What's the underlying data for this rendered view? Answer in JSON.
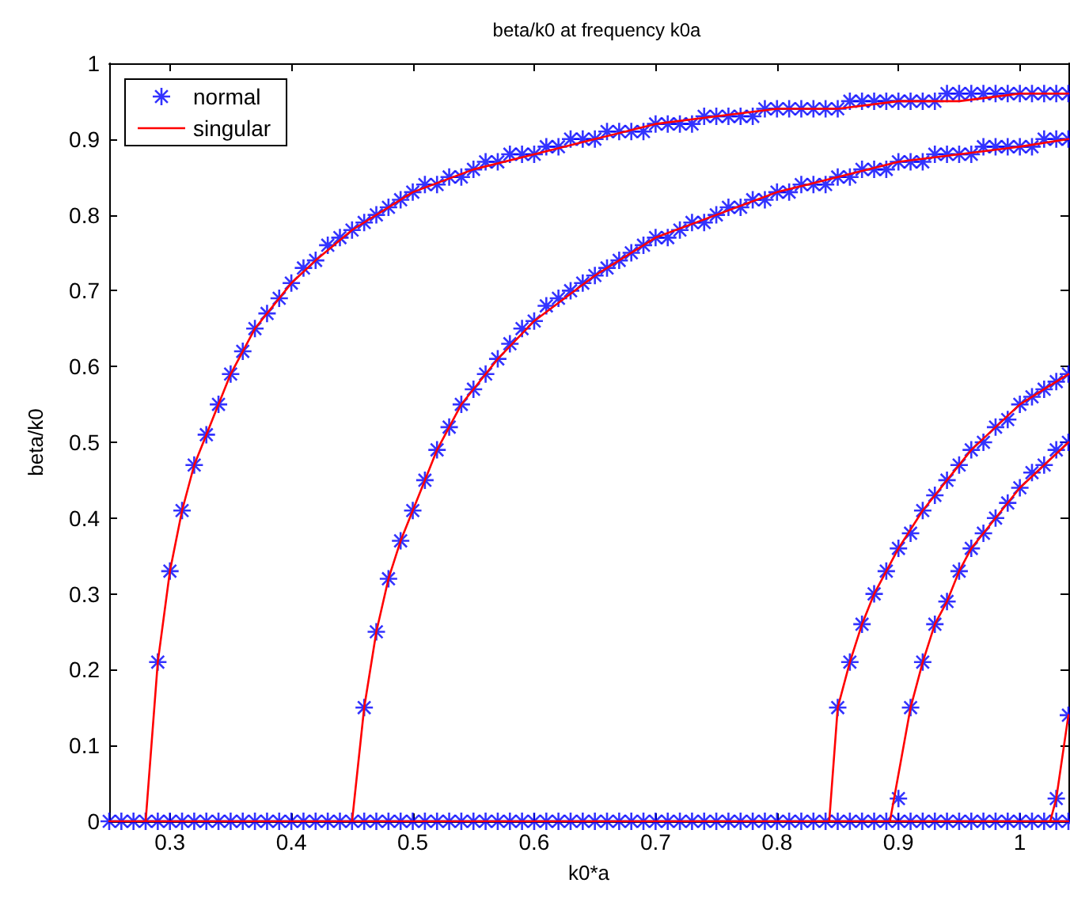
{
  "chart_data": {
    "type": "scatter",
    "title": "beta/k0 at frequency k0a",
    "xlabel": "k0*a",
    "ylabel": "beta/k0",
    "xlim": [
      0.25,
      1.04
    ],
    "xticks": [
      0.3,
      0.4,
      0.5,
      0.6,
      0.7,
      0.8,
      0.9,
      1
    ],
    "ylim": [
      0,
      1
    ],
    "yticks": [
      0,
      0.1,
      0.2,
      0.3,
      0.4,
      0.5,
      0.6,
      0.7,
      0.8,
      0.9,
      1
    ],
    "grid": false,
    "legend": "top left",
    "series": [
      {
        "name": "normal",
        "marker": "cross",
        "color": "#0000ff",
        "x": [
          0.25,
          0.26,
          0.27,
          0.28,
          0.29,
          0.3,
          0.31,
          0.32,
          0.33,
          0.34,
          0.35,
          0.36,
          0.37,
          0.38,
          0.39,
          0.4,
          0.41,
          0.42,
          0.43,
          0.44,
          0.45,
          0.46,
          0.47,
          0.48,
          0.49,
          0.5,
          0.51,
          0.52,
          0.53,
          0.54,
          0.55,
          0.56,
          0.57,
          0.58,
          0.59,
          0.6,
          0.61,
          0.62,
          0.63,
          0.64,
          0.65,
          0.66,
          0.67,
          0.68,
          0.69,
          0.7,
          0.71,
          0.72,
          0.73,
          0.74,
          0.75,
          0.76,
          0.77,
          0.78,
          0.79,
          0.8,
          0.81,
          0.82,
          0.83,
          0.84,
          0.85,
          0.86,
          0.87,
          0.88,
          0.89,
          0.9,
          0.91,
          0.92,
          0.93,
          0.94,
          0.95,
          0.96,
          0.97,
          0.98,
          0.99,
          1.0,
          1.01,
          1.02,
          1.03,
          1.04,
          0.29,
          0.3,
          0.31,
          0.32,
          0.33,
          0.34,
          0.35,
          0.36,
          0.37,
          0.38,
          0.39,
          0.4,
          0.41,
          0.42,
          0.43,
          0.44,
          0.45,
          0.46,
          0.47,
          0.48,
          0.49,
          0.5,
          0.51,
          0.52,
          0.53,
          0.54,
          0.55,
          0.56,
          0.57,
          0.58,
          0.59,
          0.6,
          0.61,
          0.62,
          0.63,
          0.64,
          0.65,
          0.66,
          0.67,
          0.68,
          0.69,
          0.7,
          0.71,
          0.72,
          0.73,
          0.74,
          0.75,
          0.76,
          0.77,
          0.78,
          0.79,
          0.8,
          0.81,
          0.82,
          0.83,
          0.84,
          0.85,
          0.86,
          0.87,
          0.88,
          0.89,
          0.9,
          0.91,
          0.92,
          0.93,
          0.94,
          0.95,
          0.96,
          0.97,
          0.98,
          0.99,
          1.0,
          1.01,
          1.02,
          1.03,
          1.04,
          0.46,
          0.47,
          0.48,
          0.49,
          0.5,
          0.51,
          0.52,
          0.53,
          0.54,
          0.55,
          0.56,
          0.57,
          0.58,
          0.59,
          0.6,
          0.61,
          0.62,
          0.63,
          0.64,
          0.65,
          0.66,
          0.67,
          0.68,
          0.69,
          0.7,
          0.71,
          0.72,
          0.73,
          0.74,
          0.75,
          0.76,
          0.77,
          0.78,
          0.79,
          0.8,
          0.81,
          0.82,
          0.83,
          0.84,
          0.85,
          0.86,
          0.87,
          0.88,
          0.89,
          0.9,
          0.91,
          0.92,
          0.93,
          0.94,
          0.95,
          0.96,
          0.97,
          0.98,
          0.99,
          1.0,
          1.01,
          1.02,
          1.03,
          1.04,
          0.85,
          0.86,
          0.87,
          0.88,
          0.89,
          0.9,
          0.91,
          0.92,
          0.93,
          0.94,
          0.95,
          0.96,
          0.97,
          0.98,
          0.99,
          1.0,
          1.01,
          1.02,
          1.03,
          1.04,
          0.9,
          0.91,
          0.92,
          0.93,
          0.94,
          0.95,
          0.96,
          0.97,
          0.98,
          0.99,
          1.0,
          1.01,
          1.02,
          1.03,
          1.04,
          1.03,
          1.04
        ],
        "values": [
          0,
          0,
          0,
          0,
          0,
          0,
          0,
          0,
          0,
          0,
          0,
          0,
          0,
          0,
          0,
          0,
          0,
          0,
          0,
          0,
          0,
          0,
          0,
          0,
          0,
          0,
          0,
          0,
          0,
          0,
          0,
          0,
          0,
          0,
          0,
          0,
          0,
          0,
          0,
          0,
          0,
          0,
          0,
          0,
          0,
          0,
          0,
          0,
          0,
          0,
          0,
          0,
          0,
          0,
          0,
          0,
          0,
          0,
          0,
          0,
          0,
          0,
          0,
          0,
          0,
          0,
          0,
          0,
          0,
          0,
          0,
          0,
          0,
          0,
          0,
          0,
          0,
          0,
          0,
          0,
          0.21,
          0.33,
          0.41,
          0.47,
          0.51,
          0.55,
          0.59,
          0.62,
          0.65,
          0.67,
          0.69,
          0.71,
          0.73,
          0.74,
          0.76,
          0.77,
          0.78,
          0.79,
          0.8,
          0.81,
          0.82,
          0.83,
          0.84,
          0.84,
          0.85,
          0.85,
          0.86,
          0.87,
          0.87,
          0.88,
          0.88,
          0.88,
          0.89,
          0.89,
          0.9,
          0.9,
          0.9,
          0.91,
          0.91,
          0.91,
          0.91,
          0.92,
          0.92,
          0.92,
          0.92,
          0.93,
          0.93,
          0.93,
          0.93,
          0.93,
          0.94,
          0.94,
          0.94,
          0.94,
          0.94,
          0.94,
          0.94,
          0.95,
          0.95,
          0.95,
          0.95,
          0.95,
          0.95,
          0.95,
          0.95,
          0.96,
          0.96,
          0.96,
          0.96,
          0.96,
          0.96,
          0.96,
          0.96,
          0.96,
          0.96,
          0.96,
          0.15,
          0.25,
          0.32,
          0.37,
          0.41,
          0.45,
          0.49,
          0.52,
          0.55,
          0.57,
          0.59,
          0.61,
          0.63,
          0.65,
          0.66,
          0.68,
          0.69,
          0.7,
          0.71,
          0.72,
          0.73,
          0.74,
          0.75,
          0.76,
          0.77,
          0.77,
          0.78,
          0.79,
          0.79,
          0.8,
          0.81,
          0.81,
          0.82,
          0.82,
          0.83,
          0.83,
          0.84,
          0.84,
          0.84,
          0.85,
          0.85,
          0.86,
          0.86,
          0.86,
          0.87,
          0.87,
          0.87,
          0.88,
          0.88,
          0.88,
          0.88,
          0.89,
          0.89,
          0.89,
          0.89,
          0.89,
          0.9,
          0.9,
          0.9,
          0.15,
          0.21,
          0.26,
          0.3,
          0.33,
          0.36,
          0.38,
          0.41,
          0.43,
          0.45,
          0.47,
          0.49,
          0.5,
          0.52,
          0.53,
          0.55,
          0.56,
          0.57,
          0.58,
          0.59,
          0.03,
          0.15,
          0.21,
          0.26,
          0.29,
          0.33,
          0.36,
          0.38,
          0.4,
          0.42,
          0.44,
          0.46,
          0.47,
          0.49,
          0.5,
          0.03,
          0.14
        ]
      },
      {
        "name": "singular",
        "type": "line",
        "marker": "none",
        "line_style": "solid",
        "color": "#ff0000",
        "x": [
          0.25,
          0.3,
          0.35,
          0.4,
          0.45,
          0.5,
          0.55,
          0.6,
          0.65,
          0.7,
          0.75,
          0.8,
          0.85,
          0.9,
          0.95,
          1.0,
          1.04,
          null,
          0.28,
          0.29,
          0.3,
          0.31,
          0.32,
          0.33,
          0.34,
          0.35,
          0.36,
          0.37,
          0.38,
          0.4,
          0.42,
          0.45,
          0.5,
          0.55,
          0.6,
          0.65,
          0.7,
          0.75,
          0.8,
          0.85,
          0.9,
          0.95,
          1.0,
          1.04,
          null,
          0.45,
          0.46,
          0.47,
          0.48,
          0.49,
          0.5,
          0.51,
          0.52,
          0.53,
          0.54,
          0.55,
          0.57,
          0.6,
          0.65,
          0.7,
          0.75,
          0.8,
          0.85,
          0.9,
          0.95,
          1.0,
          1.04,
          null,
          0.843,
          0.85,
          0.86,
          0.87,
          0.88,
          0.89,
          0.9,
          0.92,
          0.94,
          0.96,
          0.98,
          1.0,
          1.02,
          1.04,
          null,
          0.893,
          0.91,
          0.92,
          0.93,
          0.94,
          0.95,
          0.96,
          0.98,
          1.0,
          1.02,
          1.04,
          null,
          1.025,
          1.03,
          1.04
        ],
        "values": [
          0,
          0,
          0,
          0,
          0,
          0,
          0,
          0,
          0,
          0,
          0,
          0,
          0,
          0,
          0,
          0,
          0,
          null,
          0,
          0.21,
          0.33,
          0.41,
          0.47,
          0.51,
          0.55,
          0.59,
          0.62,
          0.65,
          0.67,
          0.71,
          0.74,
          0.78,
          0.83,
          0.86,
          0.88,
          0.9,
          0.92,
          0.93,
          0.94,
          0.94,
          0.95,
          0.95,
          0.96,
          0.96,
          null,
          0,
          0.15,
          0.25,
          0.32,
          0.37,
          0.41,
          0.45,
          0.49,
          0.52,
          0.55,
          0.57,
          0.61,
          0.66,
          0.72,
          0.77,
          0.8,
          0.83,
          0.85,
          0.87,
          0.88,
          0.89,
          0.9,
          null,
          0,
          0.15,
          0.21,
          0.26,
          0.3,
          0.33,
          0.36,
          0.41,
          0.45,
          0.49,
          0.52,
          0.55,
          0.57,
          0.59,
          null,
          0,
          0.15,
          0.21,
          0.26,
          0.29,
          0.33,
          0.36,
          0.4,
          0.44,
          0.47,
          0.5,
          null,
          0,
          0.03,
          0.14
        ]
      }
    ]
  }
}
